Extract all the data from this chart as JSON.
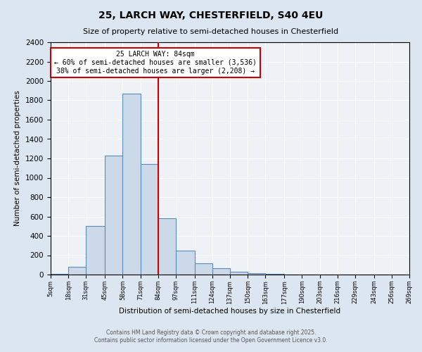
{
  "title": "25, LARCH WAY, CHESTERFIELD, S40 4EU",
  "subtitle": "Size of property relative to semi-detached houses in Chesterfield",
  "xlabel": "Distribution of semi-detached houses by size in Chesterfield",
  "ylabel": "Number of semi-detached properties",
  "bins": [
    5,
    18,
    31,
    45,
    58,
    71,
    84,
    97,
    111,
    124,
    137,
    150,
    163,
    177,
    190,
    203,
    216,
    229,
    243,
    256,
    269
  ],
  "bar_heights": [
    5,
    80,
    500,
    1230,
    1870,
    1140,
    580,
    245,
    115,
    65,
    30,
    15,
    5,
    0,
    0,
    0,
    0,
    0,
    0,
    0
  ],
  "bar_face_color": "#ccd9e8",
  "bar_edge_color": "#5b8db8",
  "vline_x": 84,
  "vline_color": "#cc0000",
  "annotation_title": "25 LARCH WAY: 84sqm",
  "annotation_line1": "← 60% of semi-detached houses are smaller (3,536)",
  "annotation_line2": "38% of semi-detached houses are larger (2,208) →",
  "annotation_box_color": "#cc0000",
  "ylim": [
    0,
    2400
  ],
  "yticks": [
    0,
    200,
    400,
    600,
    800,
    1000,
    1200,
    1400,
    1600,
    1800,
    2000,
    2200,
    2400
  ],
  "tick_labels": [
    "5sqm",
    "18sqm",
    "31sqm",
    "45sqm",
    "58sqm",
    "71sqm",
    "84sqm",
    "97sqm",
    "111sqm",
    "124sqm",
    "137sqm",
    "150sqm",
    "163sqm",
    "177sqm",
    "190sqm",
    "203sqm",
    "216sqm",
    "229sqm",
    "243sqm",
    "256sqm",
    "269sqm"
  ],
  "background_color": "#dce6f0",
  "plot_bg_color": "#eef2f7",
  "footer1": "Contains HM Land Registry data © Crown copyright and database right 2025.",
  "footer2": "Contains public sector information licensed under the Open Government Licence v3.0."
}
